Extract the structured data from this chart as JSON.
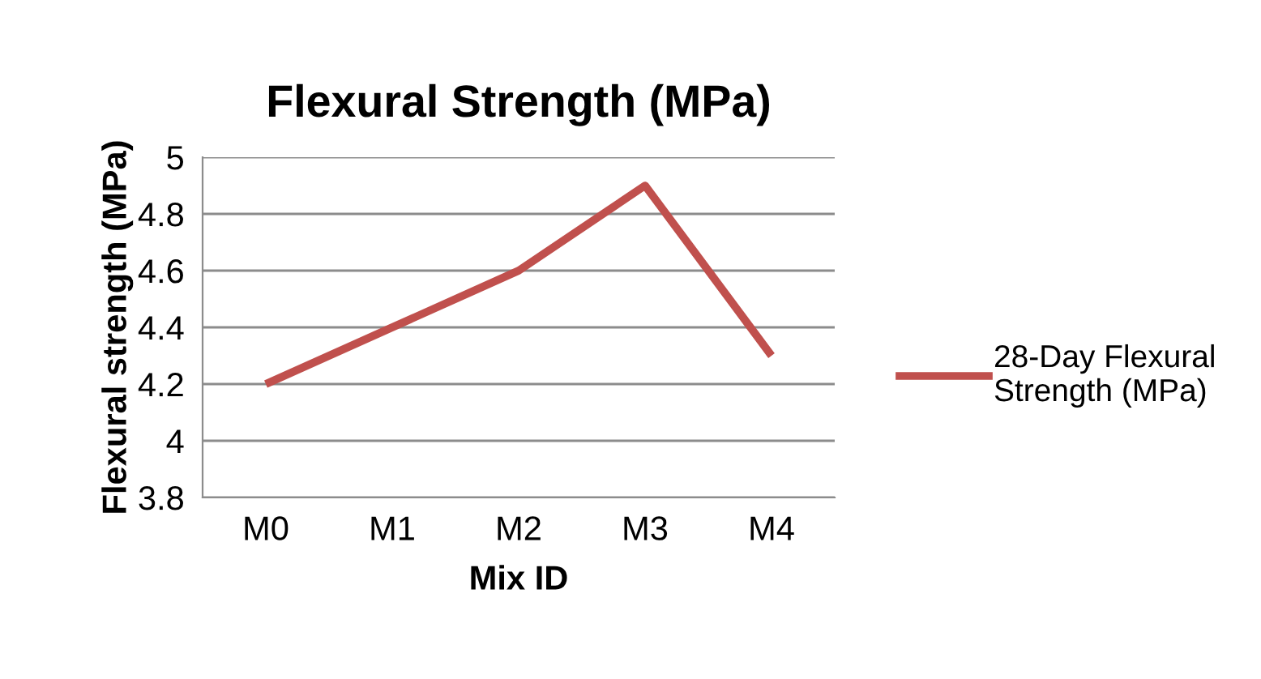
{
  "chart_data": {
    "type": "line",
    "title": "Flexural Strength (MPa)",
    "xlabel": "Mix ID",
    "ylabel": "Flexural strength (MPa)",
    "categories": [
      "M0",
      "M1",
      "M2",
      "M3",
      "M4"
    ],
    "series": [
      {
        "name": "28-Day Flexural Strength (MPa)",
        "color": "#c0504d",
        "values": [
          4.2,
          4.4,
          4.6,
          4.9,
          4.3
        ]
      }
    ],
    "ylim": [
      3.8,
      5
    ],
    "yticks": [
      3.8,
      4,
      4.2,
      4.4,
      4.6,
      4.8,
      5
    ],
    "grid": "y",
    "legend": "right",
    "marker": "none",
    "line_style": "solid"
  }
}
